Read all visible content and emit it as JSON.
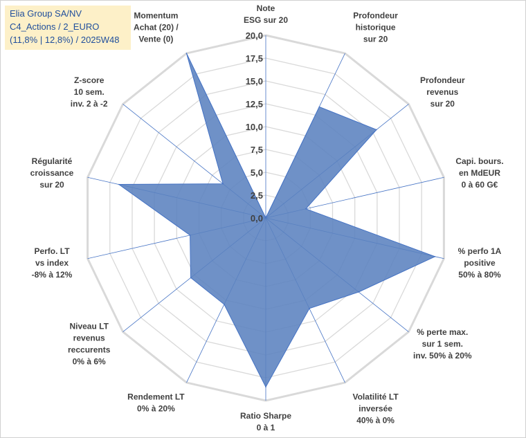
{
  "title_box": {
    "line1": "Elia Group SA/NV",
    "line2": "C4_Actions / 2_EURO",
    "line3": "(11,8% | 12,8%) / 2025W48"
  },
  "colors": {
    "fill": "#5b82bf",
    "stroke": "#4472c4",
    "grid": "#d9d9d9",
    "spoke": "#4472c4",
    "title_bg": "#fdf0c8",
    "title_text": "#1f4e9c"
  },
  "chart_data": {
    "type": "radar",
    "title": "",
    "rlim": [
      0,
      20
    ],
    "ticks": [
      "0,0",
      "2,5",
      "5,0",
      "7,5",
      "10,0",
      "12,5",
      "15,0",
      "17,5",
      "20,0"
    ],
    "categories": [
      [
        "Note",
        "ESG sur 20"
      ],
      [
        "Profondeur",
        "historique",
        "sur 20"
      ],
      [
        "Profondeur",
        "revenus",
        "sur 20"
      ],
      [
        "Capi. bours.",
        "en MdEUR",
        "0 à 60 G€"
      ],
      [
        "% perfo 1A",
        "positive",
        "50% à 80%"
      ],
      [
        "% perte max.",
        "sur 1 sem.",
        "inv. 50% à 20%"
      ],
      [
        "Volatilité LT",
        "inversée",
        "40% à 0%"
      ],
      [
        "Ratio Sharpe",
        "0 à 1"
      ],
      [
        "Rendement LT",
        "0% à 20%"
      ],
      [
        "Niveau LT",
        "revenus",
        "reccurents",
        "0% à 6%"
      ],
      [
        "Perfo. LT",
        "vs index",
        "-8% à 12%"
      ],
      [
        "Régularité",
        "croissance",
        "sur 20"
      ],
      [
        "Z-score",
        "10 sem.",
        "inv. 2 à -2"
      ],
      [
        "Momentum",
        "Achat (20) /",
        "Vente (0)"
      ]
    ],
    "series": [
      {
        "name": "Elia Group SA/NV",
        "values": [
          0,
          13.5,
          15.5,
          4.5,
          19,
          13,
          11,
          18.5,
          10.5,
          10.5,
          8.5,
          16.5,
          6,
          20
        ]
      }
    ]
  }
}
